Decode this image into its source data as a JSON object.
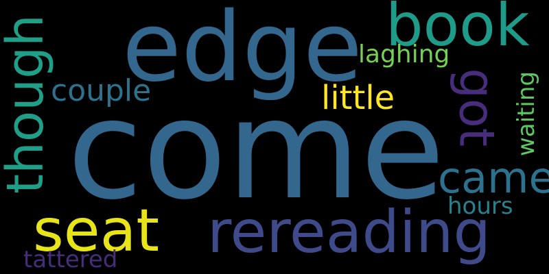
{
  "words": {
    "come": {
      "text": "come",
      "color": "#33678d"
    },
    "edge": {
      "text": "edge",
      "color": "#33678d"
    },
    "book": {
      "text": "book",
      "color": "#1f9b8a"
    },
    "though": {
      "text": "though",
      "color": "#1f9f88"
    },
    "got": {
      "text": "got",
      "color": "#472d7b"
    },
    "seat": {
      "text": "seat",
      "color": "#e7e419"
    },
    "rereading": {
      "text": "rereading",
      "color": "#3f4a8a"
    },
    "couple": {
      "text": "couple",
      "color": "#2c728e"
    },
    "little": {
      "text": "little",
      "color": "#fde725"
    },
    "laghing": {
      "text": "laghing",
      "color": "#75d054"
    },
    "came": {
      "text": "came",
      "color": "#2c728e"
    },
    "waiting": {
      "text": "waiting",
      "color": "#5ec962"
    },
    "hours": {
      "text": "hours",
      "color": "#26828e"
    },
    "tattered": {
      "text": "tattered",
      "color": "#472d7b"
    }
  }
}
